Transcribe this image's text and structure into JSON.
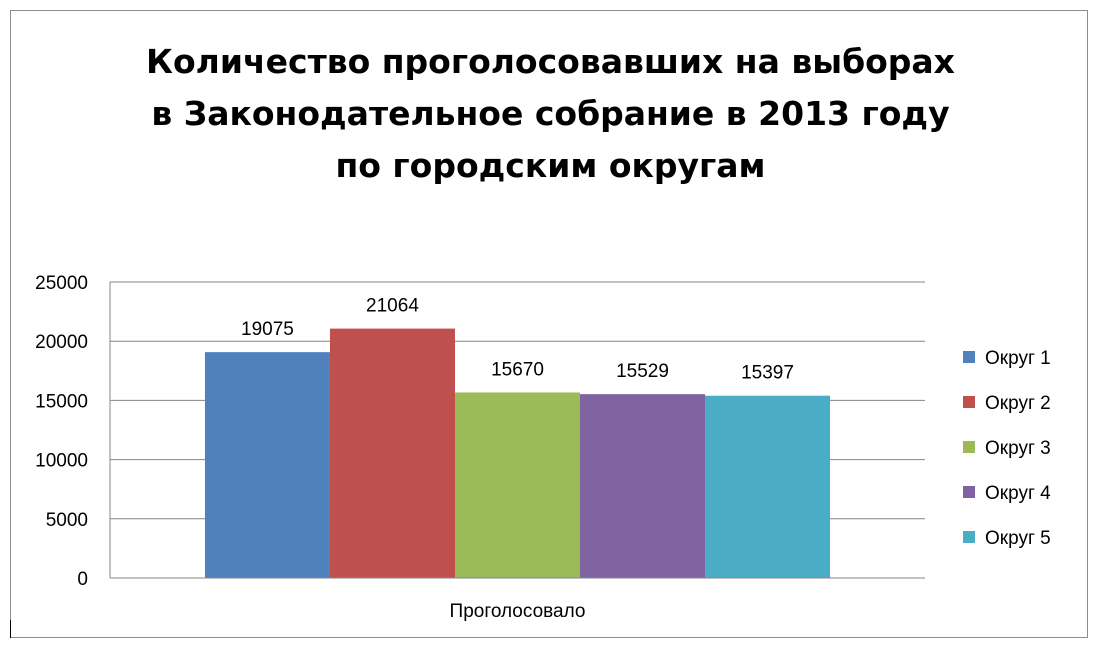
{
  "chart_data": {
    "type": "bar",
    "title_lines": [
      "Количество проголосовавших на выборах",
      "в Законодательное собрание в 2013 году",
      "по городским округам"
    ],
    "categories": [
      "Проголосовало"
    ],
    "series": [
      {
        "name": "Округ 1",
        "values": [
          19075
        ],
        "color": "#4f81bd"
      },
      {
        "name": "Округ 2",
        "values": [
          21064
        ],
        "color": "#c0504d"
      },
      {
        "name": "Округ 3",
        "values": [
          15670
        ],
        "color": "#9bbb59"
      },
      {
        "name": "Округ 4",
        "values": [
          15529
        ],
        "color": "#8064a2"
      },
      {
        "name": "Округ 5",
        "values": [
          15397
        ],
        "color": "#4bacc6"
      }
    ],
    "data_labels": [
      "19075",
      "21064",
      "15670",
      "15529",
      "15397"
    ],
    "ylim": [
      0,
      25000
    ],
    "yticks": [
      0,
      5000,
      10000,
      15000,
      20000,
      25000
    ],
    "ytick_labels": [
      "0",
      "5000",
      "10000",
      "15000",
      "20000",
      "25000"
    ],
    "grid": true,
    "legend_position": "right",
    "xlabel": "",
    "ylabel": ""
  }
}
